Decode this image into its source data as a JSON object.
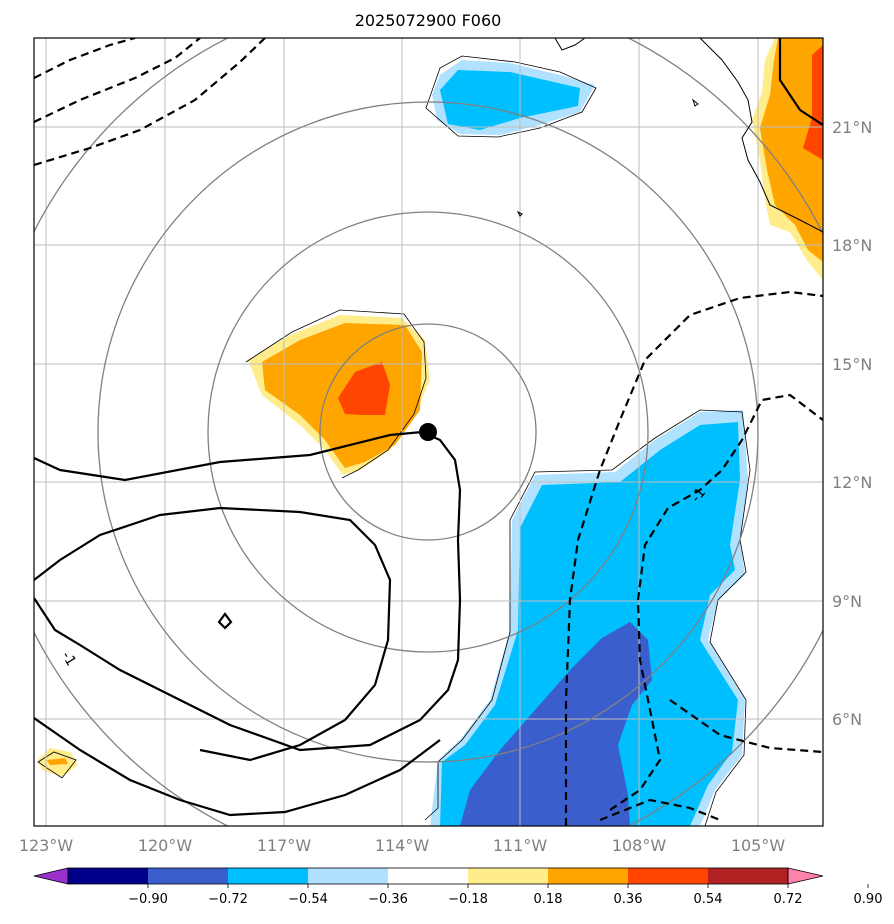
{
  "title": "2025072900 F060",
  "map": {
    "x_ticks": [
      "123°W",
      "120°W",
      "117°W",
      "114°W",
      "111°W",
      "108°W",
      "105°W"
    ],
    "y_ticks": [
      "21°N",
      "18°N",
      "15°N",
      "12°N",
      "9°N",
      "6°N"
    ],
    "storm_center": {
      "lon": -113.3,
      "lat": 13.3
    },
    "contour_labels": [
      "-1",
      "-1"
    ],
    "range_ring_count": 4
  },
  "colorbar": {
    "ticks": [
      "−0.90",
      "−0.72",
      "−0.54",
      "−0.36",
      "−0.18",
      "0.18",
      "0.36",
      "0.54",
      "0.72",
      "0.90"
    ],
    "colors": [
      "#9932cc",
      "#00008b",
      "#3a5fcd",
      "#00bfff",
      "#b0e2ff",
      "#ffffff",
      "#ffec8b",
      "#ffa500",
      "#ff4500",
      "#b22222",
      "#ff82ab"
    ]
  }
}
